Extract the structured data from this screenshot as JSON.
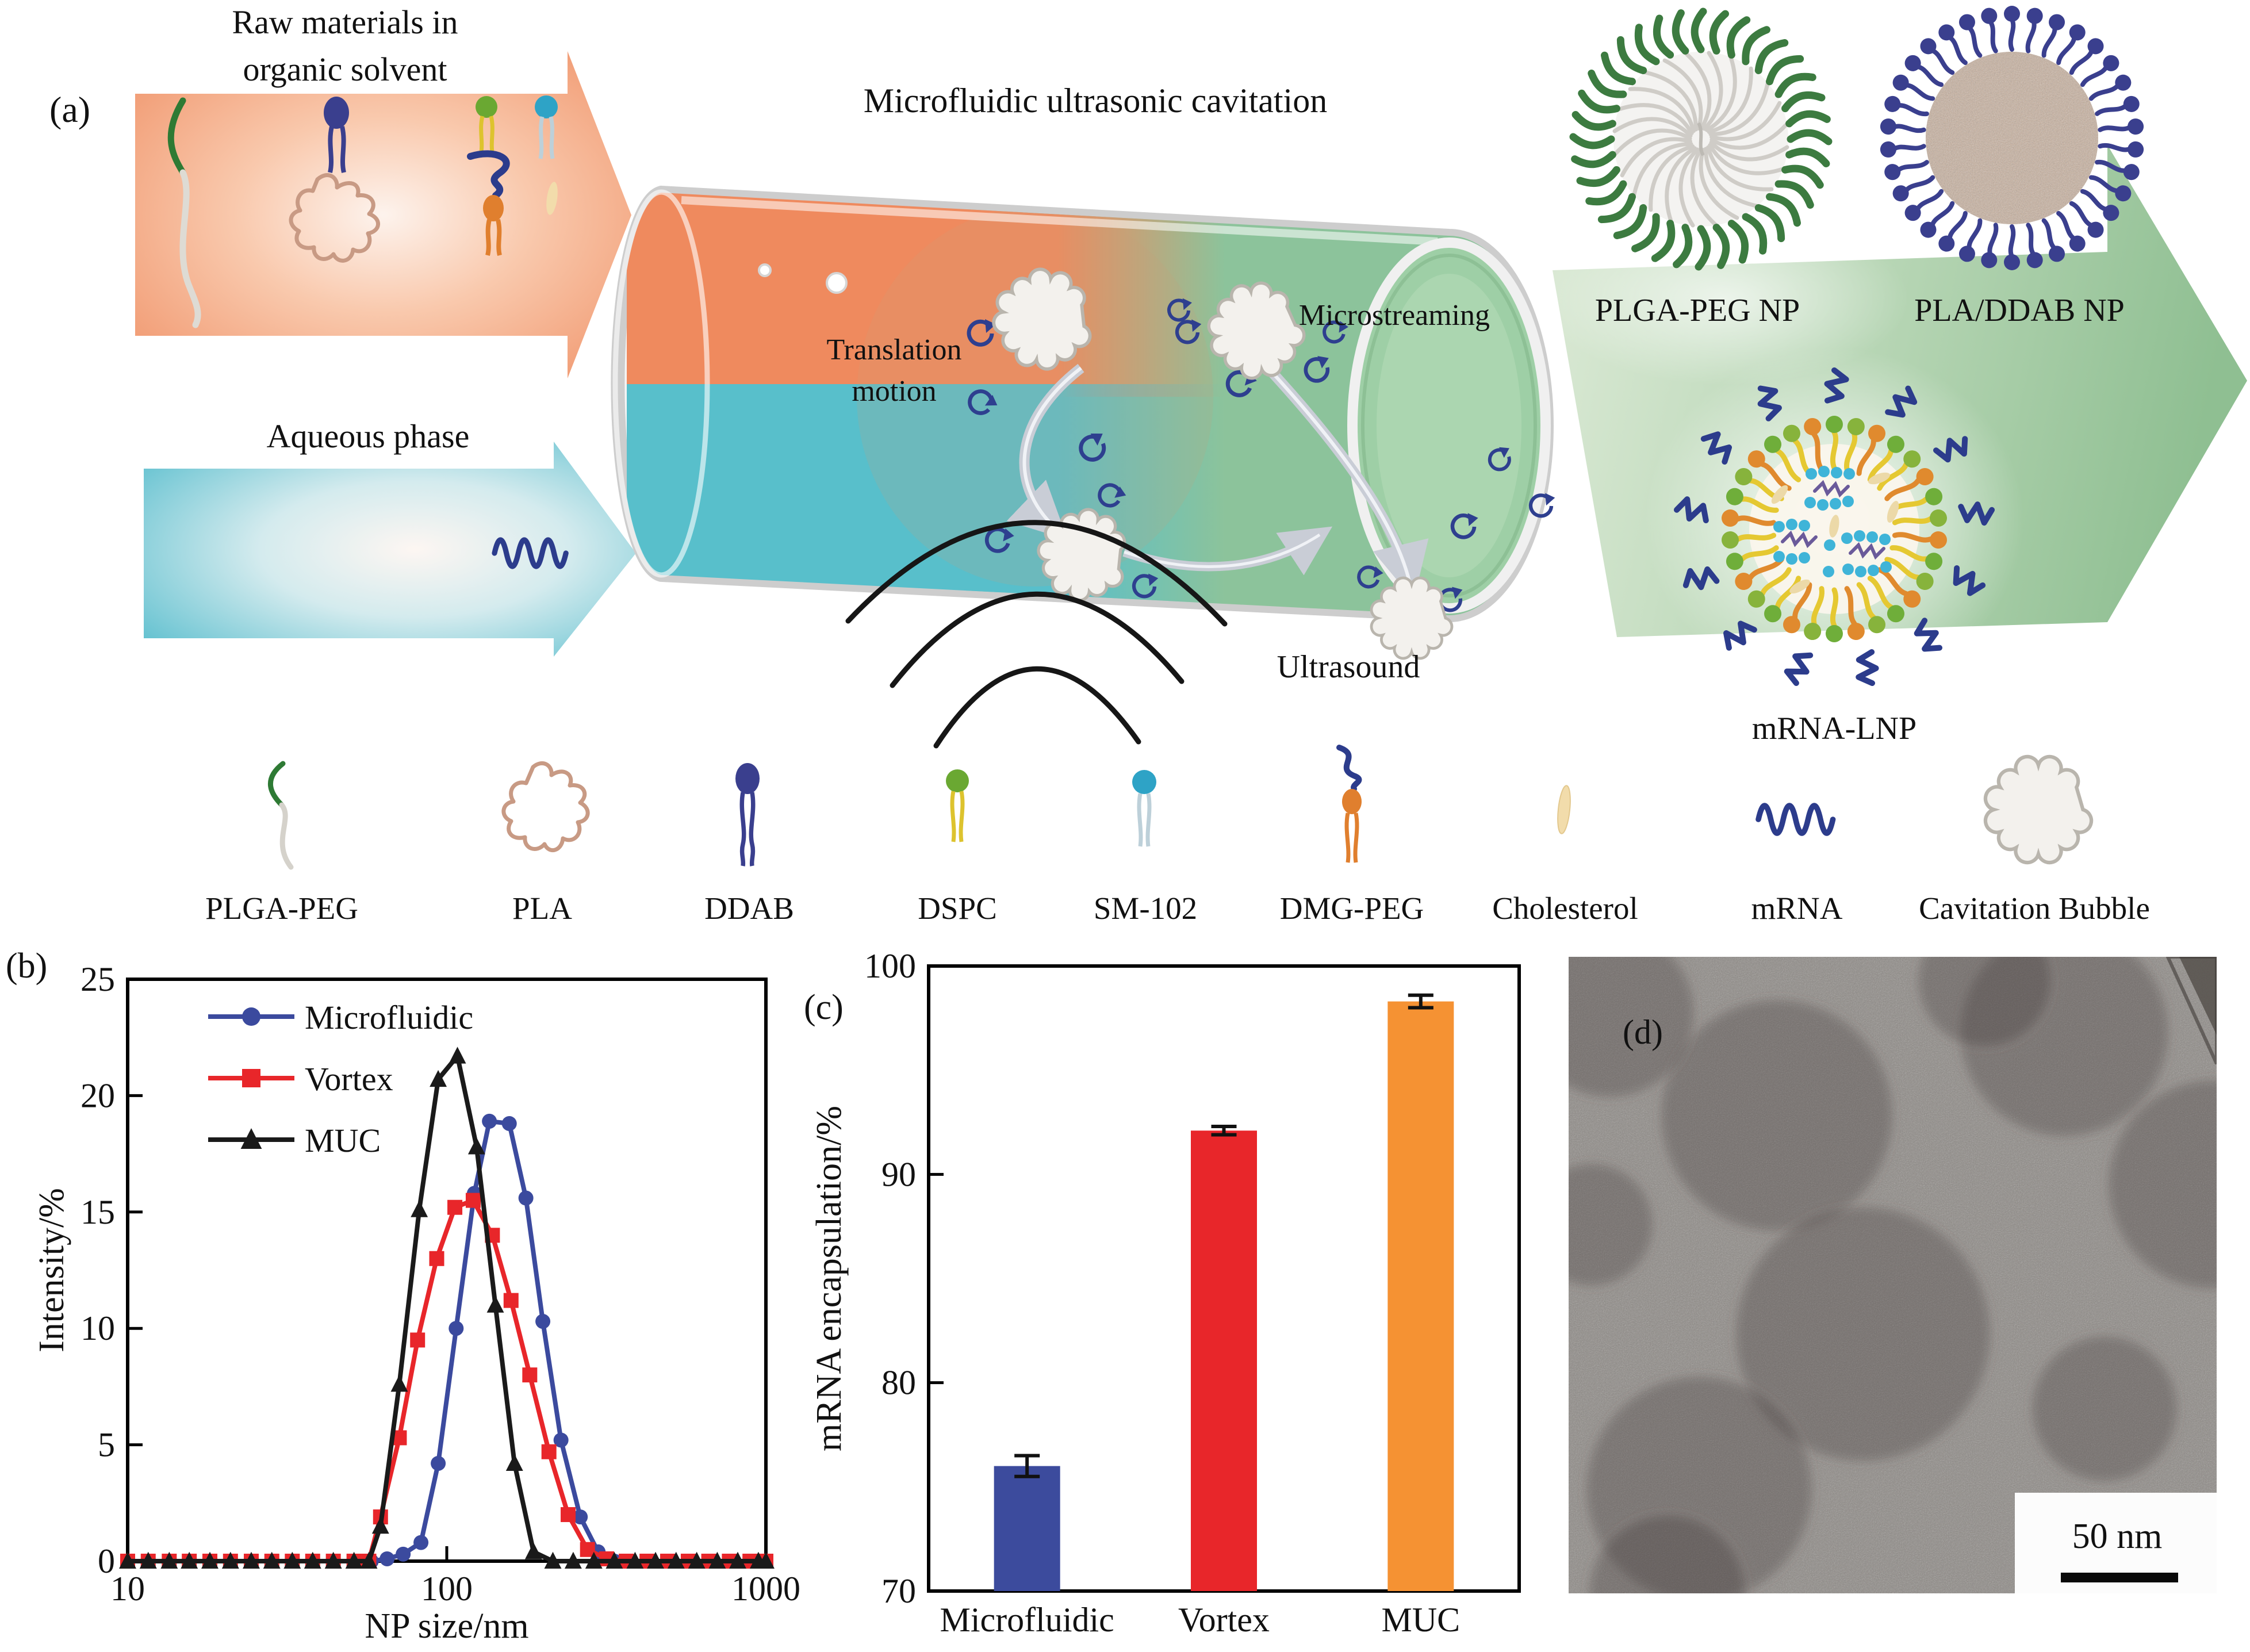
{
  "panel_a": {
    "label": "(a)",
    "raw_materials_title": [
      "Raw materials in",
      "organic solvent"
    ],
    "aqueous_phase_label": "Aqueous phase",
    "process_title": "Microfluidic ultrasonic cavitation",
    "translation_label": [
      "Translation",
      "motion"
    ],
    "microstreaming_label": "Microstreaming",
    "ultrasound_label": "Ultrasound",
    "products": {
      "plga_peg_np": "PLGA-PEG NP",
      "pla_ddab_np": "PLA/DDAB NP",
      "mrna_lnp": "mRNA-LNP"
    }
  },
  "legend_row": {
    "items": [
      {
        "label": "PLGA-PEG"
      },
      {
        "label": "PLA"
      },
      {
        "label": "DDAB"
      },
      {
        "label": "DSPC"
      },
      {
        "label": "SM-102"
      },
      {
        "label": "DMG-PEG"
      },
      {
        "label": "Cholesterol"
      },
      {
        "label": "mRNA"
      },
      {
        "label": "Cavitation Bubble"
      }
    ]
  },
  "panel_b": {
    "label": "(b)"
  },
  "panel_c": {
    "label": "(c)"
  },
  "panel_d": {
    "label": "(d)",
    "scale_bar_label": "50 nm"
  },
  "colors": {
    "microfluidic_blue": "#3b4a9e",
    "vortex_red": "#e8262a",
    "muc_black": "#1a1a1a",
    "bar_blue": "#3c4b9d",
    "bar_red": "#e8262a",
    "bar_orange": "#f59233",
    "arrow_orange": "#f19a72",
    "arrow_teal": "#62c1d0",
    "arrow_green": "#98c49c",
    "navy": "#2c3c8c"
  },
  "chart_data": [
    {
      "panel": "b",
      "type": "line",
      "xscale": "log",
      "title": "",
      "xlabel": "NP size/nm",
      "ylabel": "Intensity/%",
      "xlim": [
        10,
        1000
      ],
      "ylim": [
        0,
        25
      ],
      "xticks": [
        10,
        100,
        1000
      ],
      "yticks": [
        0,
        5,
        10,
        15,
        20,
        25
      ],
      "grid": false,
      "legend_position": "top-left",
      "series": [
        {
          "name": "Microfluidic",
          "color": "#3b4a9e",
          "marker": "circle",
          "x": [
            58,
            65,
            73,
            83,
            94,
            107,
            122,
            136,
            157,
            177,
            200,
            228,
            262,
            298,
            335
          ],
          "y": [
            0,
            0.1,
            0.3,
            0.8,
            4.2,
            10,
            15.8,
            18.9,
            18.8,
            15.6,
            10.3,
            5.2,
            1.9,
            0.4,
            0
          ]
        },
        {
          "name": "Vortex",
          "color": "#e8262a",
          "marker": "square",
          "x": [
            10,
            11.6,
            13.5,
            15.6,
            18.1,
            21,
            24.4,
            28.3,
            32.8,
            38,
            44.1,
            51.2,
            57,
            62,
            71,
            81,
            93,
            106,
            121,
            139,
            159,
            182,
            209,
            240,
            276,
            317,
            365,
            424,
            492,
            571,
            662,
            768,
            891,
            1000
          ],
          "y": [
            0,
            0,
            0,
            0,
            0,
            0,
            0,
            0,
            0,
            0,
            0,
            0,
            0,
            1.9,
            5.3,
            9.5,
            13,
            15.2,
            15.5,
            14,
            11.2,
            8,
            4.7,
            2,
            0.5,
            0.1,
            0,
            0,
            0,
            0,
            0,
            0,
            0,
            0
          ]
        },
        {
          "name": "MUC",
          "color": "#1a1a1a",
          "marker": "triangle",
          "x": [
            10,
            11.6,
            13.5,
            15.6,
            18.1,
            21,
            24.4,
            28.3,
            32.8,
            38,
            44.1,
            51.2,
            57,
            62,
            71,
            82,
            94,
            108,
            124,
            142,
            163,
            187,
            215,
            249,
            289,
            335,
            389,
            451,
            523,
            607,
            704,
            816,
            947,
            1000
          ],
          "y": [
            0,
            0,
            0,
            0,
            0,
            0,
            0,
            0,
            0,
            0,
            0,
            0,
            0,
            1.5,
            7.6,
            15.1,
            20.7,
            21.7,
            17.8,
            11,
            4.2,
            0.4,
            0,
            0,
            0,
            0,
            0,
            0,
            0,
            0,
            0,
            0,
            0,
            0
          ]
        }
      ]
    },
    {
      "panel": "c",
      "type": "bar",
      "title": "",
      "xlabel": "",
      "ylabel": "mRNA encapsulation/%",
      "categories": [
        "Microfluidic",
        "Vortex",
        "MUC"
      ],
      "values": [
        76,
        92.1,
        98.3
      ],
      "errors": [
        0.5,
        0.2,
        0.3
      ],
      "colors": [
        "#3c4b9d",
        "#e8262a",
        "#f59233"
      ],
      "ylim": [
        70,
        100
      ],
      "yticks": [
        70,
        80,
        90,
        100
      ],
      "grid": false
    }
  ]
}
